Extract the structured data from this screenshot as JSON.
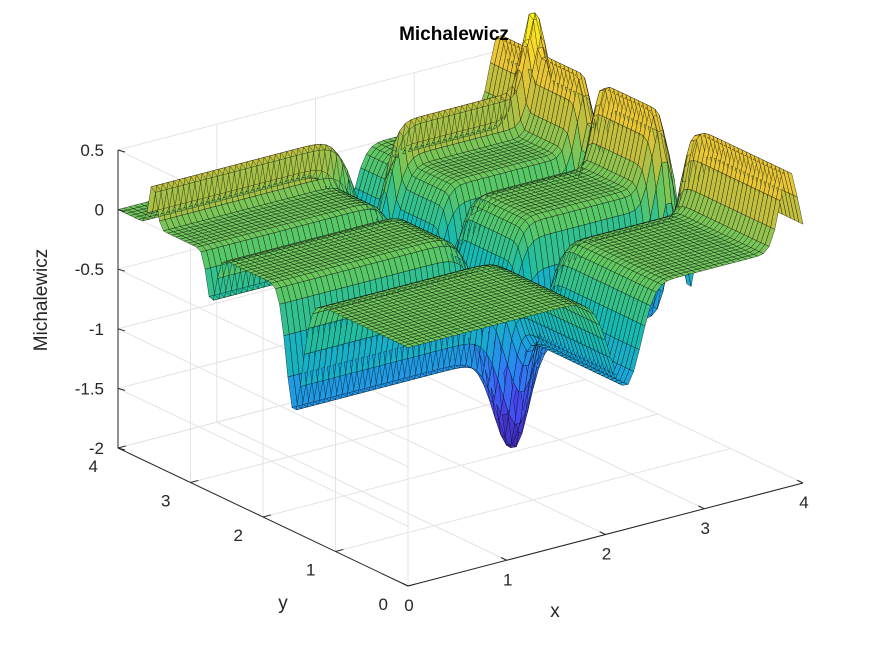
{
  "chart_data": {
    "type": "surface",
    "title": "Michalewicz",
    "xlabel": "x",
    "ylabel": "y",
    "zlabel": "Michalewicz",
    "function": "f(x,y) = -sin(x)*sin(x^2/pi)^20 - sin(y)*sin(2*y^2/pi)^20",
    "x_range": [
      0,
      4
    ],
    "y_range": [
      0,
      4
    ],
    "zlim": [
      -2,
      0.5
    ],
    "x_ticks": [
      "0",
      "1",
      "2",
      "3",
      "4"
    ],
    "y_ticks": [
      "0",
      "1",
      "2",
      "3",
      "4"
    ],
    "z_ticks": [
      "-2",
      "-1.5",
      "-1",
      "-0.5",
      "0",
      "0.5"
    ],
    "colormap": "parula",
    "colormap_stops": [
      "#3e26a8",
      "#4745f0",
      "#2f7ef6",
      "#1aa7d9",
      "#16bbad",
      "#5cc863",
      "#bdbf40",
      "#f5c934",
      "#f9fb15"
    ],
    "edge_color": "#000000",
    "grid": true,
    "view": "3-D perspective"
  }
}
